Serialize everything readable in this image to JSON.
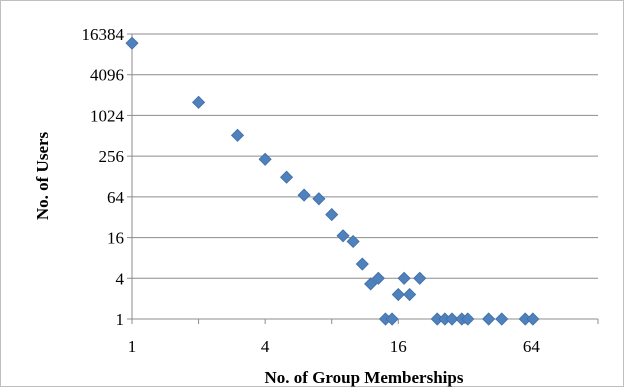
{
  "chart_data": {
    "type": "scatter",
    "title": "",
    "xlabel": "No. of Group Memberships",
    "ylabel": "No. of Users",
    "x_scale": "log2",
    "y_scale": "log2",
    "xlim": [
      1,
      128
    ],
    "ylim": [
      1,
      16384
    ],
    "x_ticks": [
      "1",
      "4",
      "16",
      "64"
    ],
    "y_ticks": [
      "1",
      "4",
      "16",
      "64",
      "256",
      "1024",
      "4096",
      "16384"
    ],
    "grid": "horizontal",
    "legend": "none",
    "marker_color": "#4f81bd",
    "points": [
      {
        "x": 1,
        "y": 12000
      },
      {
        "x": 2,
        "y": 1600
      },
      {
        "x": 3,
        "y": 520
      },
      {
        "x": 4,
        "y": 230
      },
      {
        "x": 5,
        "y": 125
      },
      {
        "x": 6,
        "y": 68
      },
      {
        "x": 7,
        "y": 60
      },
      {
        "x": 8,
        "y": 35
      },
      {
        "x": 9,
        "y": 17
      },
      {
        "x": 10,
        "y": 14
      },
      {
        "x": 11,
        "y": 6.5
      },
      {
        "x": 12,
        "y": 3.3
      },
      {
        "x": 13,
        "y": 4
      },
      {
        "x": 14,
        "y": 1
      },
      {
        "x": 15,
        "y": 1
      },
      {
        "x": 16,
        "y": 2.3
      },
      {
        "x": 17,
        "y": 4
      },
      {
        "x": 18,
        "y": 2.3
      },
      {
        "x": 20,
        "y": 4
      },
      {
        "x": 24,
        "y": 1
      },
      {
        "x": 26,
        "y": 1
      },
      {
        "x": 28,
        "y": 1
      },
      {
        "x": 31,
        "y": 1
      },
      {
        "x": 33,
        "y": 1
      },
      {
        "x": 41,
        "y": 1
      },
      {
        "x": 47,
        "y": 1
      },
      {
        "x": 60,
        "y": 1
      },
      {
        "x": 65,
        "y": 1
      }
    ]
  }
}
